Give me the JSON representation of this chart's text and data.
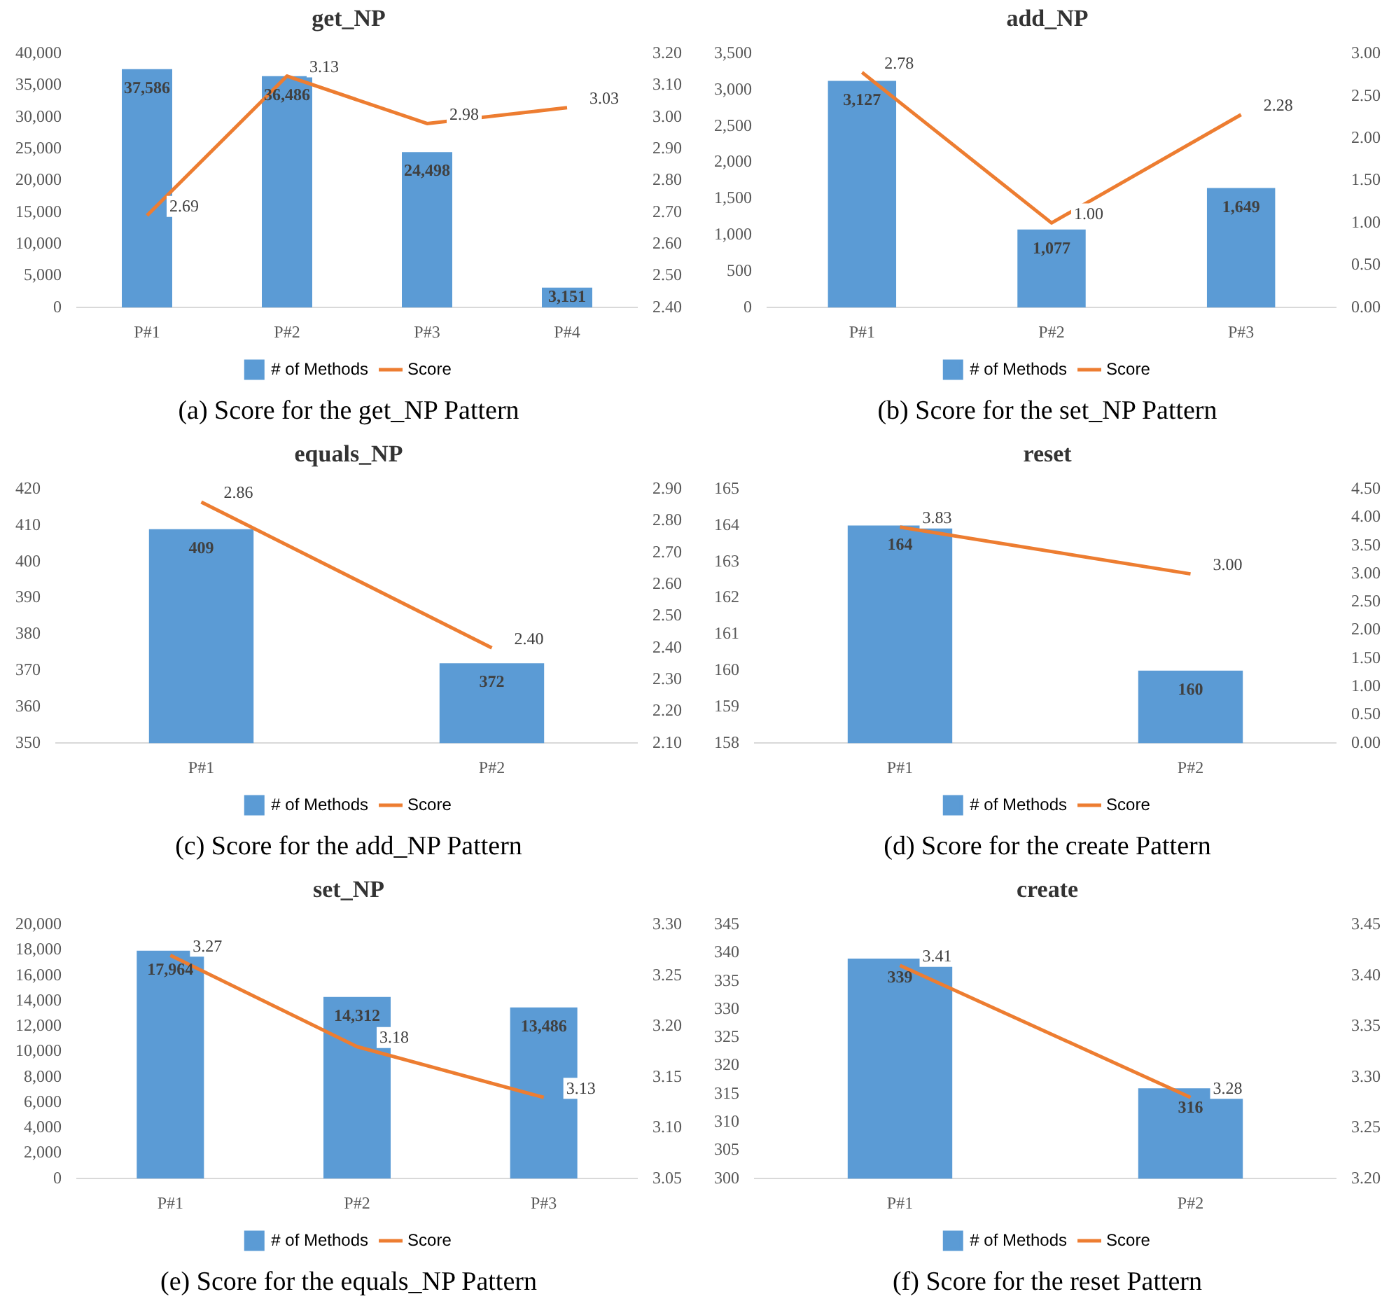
{
  "chart_data": [
    {
      "type": "bar",
      "title": "get_NP",
      "categories": [
        "P#1",
        "P#2",
        "P#3",
        "P#4"
      ],
      "legend": "bottom",
      "marker": "none",
      "ylim": [
        0,
        40000
      ],
      "yticks": [
        0,
        {
          "value": 5000,
          "label": "5,000"
        },
        {
          "value": 10000,
          "label": "10,000"
        },
        {
          "value": 15000,
          "label": "15,000"
        },
        {
          "value": 20000,
          "label": "20,000"
        },
        {
          "value": 25000,
          "label": "25,000"
        },
        {
          "value": 30000,
          "label": "30,000"
        },
        {
          "value": 35000,
          "label": "35,000"
        },
        {
          "value": 40000,
          "label": "40,000"
        }
      ],
      "y2lim": [
        2.4,
        3.2
      ],
      "y2ticks": [
        {
          "value": 2.4,
          "label": "2.40"
        },
        {
          "value": 2.5,
          "label": "2.50"
        },
        {
          "value": 2.6,
          "label": "2.60"
        },
        {
          "value": 2.7,
          "label": "2.70"
        },
        {
          "value": 2.8,
          "label": "2.80"
        },
        {
          "value": 2.9,
          "label": "2.90"
        },
        {
          "value": 3.0,
          "label": "3.00"
        },
        {
          "value": 3.1,
          "label": "3.10"
        },
        {
          "value": 3.2,
          "label": "3.20"
        }
      ],
      "series": [
        {
          "name": "# of Methods",
          "color": "#5b9bd5",
          "values": [
            37586,
            36486,
            24498,
            3151
          ],
          "value_labels": [
            "37,586",
            "36,486",
            "24,498",
            "3,151"
          ]
        },
        {
          "name": "Score",
          "type": "line",
          "axis": "y2",
          "color": "#ed7d31",
          "values": [
            2.69,
            3.13,
            2.98,
            3.03
          ],
          "value_labels": [
            "2.69",
            "3.13",
            "2.98",
            "3.03"
          ]
        }
      ],
      "annotations": [
        "(a) Score for the get_NP Pattern"
      ]
    },
    {
      "type": "bar",
      "title": "add_NP",
      "categories": [
        "P#1",
        "P#2",
        "P#3"
      ],
      "legend": "bottom",
      "marker": "none",
      "ylim": [
        0,
        3500
      ],
      "yticks": [
        0,
        500,
        {
          "value": 1000,
          "label": "1,000"
        },
        {
          "value": 1500,
          "label": "1,500"
        },
        {
          "value": 2000,
          "label": "2,000"
        },
        {
          "value": 2500,
          "label": "2,500"
        },
        {
          "value": 3000,
          "label": "3,000"
        },
        {
          "value": 3500,
          "label": "3,500"
        }
      ],
      "y2lim": [
        0,
        3
      ],
      "y2ticks": [
        {
          "value": 0,
          "label": "0.00"
        },
        {
          "value": 0.5,
          "label": "0.50"
        },
        {
          "value": 1,
          "label": "1.00"
        },
        {
          "value": 1.5,
          "label": "1.50"
        },
        {
          "value": 2,
          "label": "2.00"
        },
        {
          "value": 2.5,
          "label": "2.50"
        },
        {
          "value": 3,
          "label": "3.00"
        }
      ],
      "series": [
        {
          "name": "# of Methods",
          "color": "#5b9bd5",
          "values": [
            3127,
            1077,
            1649
          ],
          "value_labels": [
            "3,127",
            "1,077",
            "1,649"
          ]
        },
        {
          "name": "Score",
          "type": "line",
          "axis": "y2",
          "color": "#ed7d31",
          "values": [
            2.78,
            1.0,
            2.28
          ],
          "value_labels": [
            "2.78",
            "1.00",
            "2.28"
          ]
        }
      ],
      "annotations": [
        "(b) Score for the set_NP Pattern"
      ]
    },
    {
      "type": "bar",
      "title": "equals_NP",
      "categories": [
        "P#1",
        "P#2"
      ],
      "legend": "bottom",
      "marker": "none",
      "ylim": [
        350,
        420
      ],
      "yticks": [
        350,
        360,
        370,
        380,
        390,
        400,
        410,
        420
      ],
      "y2lim": [
        2.1,
        2.9
      ],
      "y2ticks": [
        {
          "value": 2.1,
          "label": "2.10"
        },
        {
          "value": 2.2,
          "label": "2.20"
        },
        {
          "value": 2.3,
          "label": "2.30"
        },
        {
          "value": 2.4,
          "label": "2.40"
        },
        {
          "value": 2.5,
          "label": "2.50"
        },
        {
          "value": 2.6,
          "label": "2.60"
        },
        {
          "value": 2.7,
          "label": "2.70"
        },
        {
          "value": 2.8,
          "label": "2.80"
        },
        {
          "value": 2.9,
          "label": "2.90"
        }
      ],
      "series": [
        {
          "name": "# of Methods",
          "color": "#5b9bd5",
          "values": [
            409,
            372
          ],
          "value_labels": [
            "409",
            "372"
          ]
        },
        {
          "name": "Score",
          "type": "line",
          "axis": "y2",
          "color": "#ed7d31",
          "values": [
            2.86,
            2.4
          ],
          "value_labels": [
            "2.86",
            "2.40"
          ]
        }
      ],
      "annotations": [
        "(c) Score for the add_NP Pattern"
      ]
    },
    {
      "type": "bar",
      "title": "reset",
      "categories": [
        "P#1",
        "P#2"
      ],
      "legend": "bottom",
      "marker": "none",
      "ylim": [
        158,
        165
      ],
      "yticks": [
        158,
        159,
        160,
        161,
        162,
        163,
        164,
        165
      ],
      "y2lim": [
        0,
        4.5
      ],
      "y2ticks": [
        {
          "value": 0,
          "label": "0.00"
        },
        {
          "value": 0.5,
          "label": "0.50"
        },
        {
          "value": 1,
          "label": "1.00"
        },
        {
          "value": 1.5,
          "label": "1.50"
        },
        {
          "value": 2,
          "label": "2.00"
        },
        {
          "value": 2.5,
          "label": "2.50"
        },
        {
          "value": 3,
          "label": "3.00"
        },
        {
          "value": 3.5,
          "label": "3.50"
        },
        {
          "value": 4,
          "label": "4.00"
        },
        {
          "value": 4.5,
          "label": "4.50"
        }
      ],
      "series": [
        {
          "name": "# of Methods",
          "color": "#5b9bd5",
          "values": [
            164,
            160
          ],
          "value_labels": [
            "164",
            "160"
          ]
        },
        {
          "name": "Score",
          "type": "line",
          "axis": "y2",
          "color": "#ed7d31",
          "values": [
            3.83,
            3.0
          ],
          "value_labels": [
            "3.83",
            "3.00"
          ]
        }
      ],
      "annotations": [
        "(d) Score for the create Pattern"
      ]
    },
    {
      "type": "bar",
      "title": "set_NP",
      "categories": [
        "P#1",
        "P#2",
        "P#3"
      ],
      "legend": "bottom",
      "marker": "none",
      "ylim": [
        0,
        20000
      ],
      "yticks": [
        0,
        {
          "value": 2000,
          "label": "2,000"
        },
        {
          "value": 4000,
          "label": "4,000"
        },
        {
          "value": 6000,
          "label": "6,000"
        },
        {
          "value": 8000,
          "label": "8,000"
        },
        {
          "value": 10000,
          "label": "10,000"
        },
        {
          "value": 12000,
          "label": "12,000"
        },
        {
          "value": 14000,
          "label": "14,000"
        },
        {
          "value": 16000,
          "label": "16,000"
        },
        {
          "value": 18000,
          "label": "18,000"
        },
        {
          "value": 20000,
          "label": "20,000"
        }
      ],
      "y2lim": [
        3.05,
        3.3
      ],
      "y2ticks": [
        {
          "value": 3.05,
          "label": "3.05"
        },
        {
          "value": 3.1,
          "label": "3.10"
        },
        {
          "value": 3.15,
          "label": "3.15"
        },
        {
          "value": 3.2,
          "label": "3.20"
        },
        {
          "value": 3.25,
          "label": "3.25"
        },
        {
          "value": 3.3,
          "label": "3.30"
        }
      ],
      "series": [
        {
          "name": "# of Methods",
          "color": "#5b9bd5",
          "values": [
            17964,
            14312,
            13486
          ],
          "value_labels": [
            "17,964",
            "14,312",
            "13,486"
          ]
        },
        {
          "name": "Score",
          "type": "line",
          "axis": "y2",
          "color": "#ed7d31",
          "values": [
            3.27,
            3.18,
            3.13
          ],
          "value_labels": [
            "3.27",
            "3.18",
            "3.13"
          ]
        }
      ],
      "annotations": [
        "(e) Score for the equals_NP Pattern"
      ]
    },
    {
      "type": "bar",
      "title": "create",
      "categories": [
        "P#1",
        "P#2"
      ],
      "legend": "bottom",
      "marker": "none",
      "ylim": [
        300,
        345
      ],
      "yticks": [
        300,
        305,
        310,
        315,
        320,
        325,
        330,
        335,
        340,
        345
      ],
      "y2lim": [
        3.2,
        3.45
      ],
      "y2ticks": [
        {
          "value": 3.2,
          "label": "3.20"
        },
        {
          "value": 3.25,
          "label": "3.25"
        },
        {
          "value": 3.3,
          "label": "3.30"
        },
        {
          "value": 3.35,
          "label": "3.35"
        },
        {
          "value": 3.4,
          "label": "3.40"
        },
        {
          "value": 3.45,
          "label": "3.45"
        }
      ],
      "series": [
        {
          "name": "# of Methods",
          "color": "#5b9bd5",
          "values": [
            339,
            316
          ],
          "value_labels": [
            "339",
            "316"
          ]
        },
        {
          "name": "Score",
          "type": "line",
          "axis": "y2",
          "color": "#ed7d31",
          "values": [
            3.41,
            3.28
          ],
          "value_labels": [
            "3.41",
            "3.28"
          ]
        }
      ],
      "annotations": [
        "(f) Score for the reset Pattern"
      ]
    }
  ]
}
